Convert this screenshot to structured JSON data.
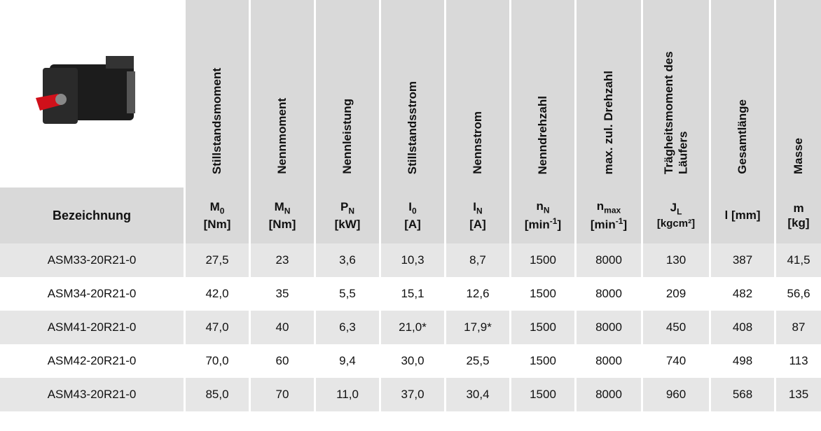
{
  "table": {
    "columns": [
      {
        "name": "Bezeichnung"
      },
      {
        "name": "Stillstandsmoment",
        "symbol": {
          "text": "M",
          "sub": "0"
        },
        "unit": {
          "text": "[Nm]"
        }
      },
      {
        "name": "Nennmoment",
        "symbol": {
          "text": "M",
          "sub": "N"
        },
        "unit": {
          "text": "[Nm]"
        }
      },
      {
        "name": "Nennleistung",
        "symbol": {
          "text": "P",
          "sub": "N"
        },
        "unit": {
          "text": "[kW]"
        }
      },
      {
        "name": "Stillstandsstrom",
        "symbol": {
          "text": "I",
          "sub": "0"
        },
        "unit": {
          "text": "[A]"
        }
      },
      {
        "name": "Nennstrom",
        "symbol": {
          "text": "I",
          "sub": "N"
        },
        "unit": {
          "text": "[A]"
        }
      },
      {
        "name": "Nenndrehzahl",
        "symbol": {
          "text": "n",
          "sub": "N"
        },
        "unit": {
          "text": "[min",
          "sup": "-1",
          "end": "]"
        }
      },
      {
        "name": "max. zul. Drehzahl",
        "symbol": {
          "text": "n",
          "sub": "max"
        },
        "unit": {
          "text": "[min",
          "sup": "-1",
          "end": "]"
        }
      },
      {
        "name": "Trägheitsmoment des Läufers",
        "symbol": {
          "text": "J",
          "sub": "L"
        },
        "unit": {
          "text": "[kgcm²]"
        }
      },
      {
        "name": "Gesamtlänge",
        "symbol": {
          "text": "l [mm]"
        }
      },
      {
        "name": "Masse",
        "symbol": {
          "text": "m"
        },
        "unit": {
          "text": "[kg]"
        }
      }
    ],
    "rows": [
      [
        "ASM33-20R21-0",
        "27,5",
        "23",
        "3,6",
        "10,3",
        "8,7",
        "1500",
        "8000",
        "130",
        "387",
        "41,5"
      ],
      [
        "ASM34-20R21-0",
        "42,0",
        "35",
        "5,5",
        "15,1",
        "12,6",
        "1500",
        "8000",
        "209",
        "482",
        "56,6"
      ],
      [
        "ASM41-20R21-0",
        "47,0",
        "40",
        "6,3",
        "21,0*",
        "17,9*",
        "1500",
        "8000",
        "450",
        "408",
        "87"
      ],
      [
        "ASM42-20R21-0",
        "70,0",
        "60",
        "9,4",
        "30,0",
        "25,5",
        "1500",
        "8000",
        "740",
        "498",
        "113"
      ],
      [
        "ASM43-20R21-0",
        "85,0",
        "70",
        "11,0",
        "37,0",
        "30,4",
        "1500",
        "8000",
        "960",
        "568",
        "135"
      ]
    ]
  }
}
